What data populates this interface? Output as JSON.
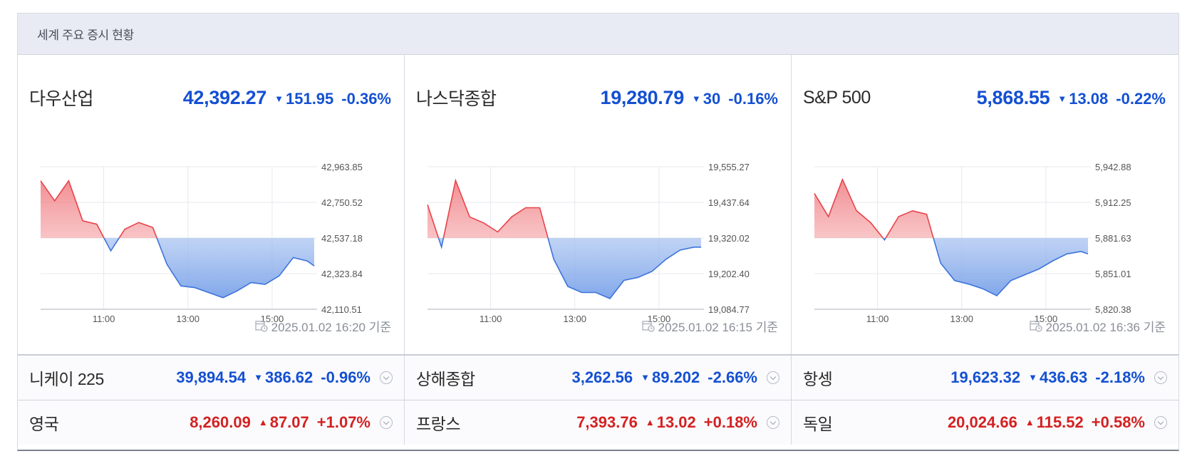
{
  "header": {
    "title": "세계 주요 증시 현황"
  },
  "panels": [
    {
      "name": "다우산업",
      "price": "42,392.27",
      "change": "151.95",
      "percent": "-0.36%",
      "direction": "down",
      "timestamp": "2025.01.02 16:20 기준"
    },
    {
      "name": "나스닥종합",
      "price": "19,280.79",
      "change": "30",
      "percent": "-0.16%",
      "direction": "down",
      "timestamp": "2025.01.02 16:15 기준"
    },
    {
      "name": "S&P 500",
      "price": "5,868.55",
      "change": "13.08",
      "percent": "-0.22%",
      "direction": "down",
      "timestamp": "2025.01.02 16:36 기준"
    }
  ],
  "rows": [
    [
      {
        "name": "니케이 225",
        "price": "39,894.54",
        "change": "386.62",
        "percent": "-0.96%",
        "direction": "down"
      },
      {
        "name": "상해종합",
        "price": "3,262.56",
        "change": "89.202",
        "percent": "-2.66%",
        "direction": "down"
      },
      {
        "name": "항셍",
        "price": "19,623.32",
        "change": "436.63",
        "percent": "-2.18%",
        "direction": "down"
      }
    ],
    [
      {
        "name": "영국",
        "price": "8,260.09",
        "change": "87.07",
        "percent": "+1.07%",
        "direction": "up"
      },
      {
        "name": "프랑스",
        "price": "7,393.76",
        "change": "13.02",
        "percent": "+0.18%",
        "direction": "up"
      },
      {
        "name": "독일",
        "price": "20,024.66",
        "change": "115.52",
        "percent": "+0.58%",
        "direction": "up"
      }
    ]
  ],
  "colors": {
    "up": "#d42121",
    "down": "#1450d2",
    "up_line": "#e8434a",
    "down_line": "#3c74dc"
  },
  "icons": {
    "down_arrow": "▼",
    "up_arrow": "▲",
    "timestamp_icon": "calendar-clock-icon",
    "expand_icon": "chevron-down-circle-icon"
  },
  "chart_data": [
    {
      "type": "line",
      "title": "다우산업",
      "x_ticks": [
        "11:00",
        "13:00",
        "15:00"
      ],
      "y_ticks": [
        "42,963.85",
        "42,750.52",
        "42,537.18",
        "42,323.84",
        "42,110.51"
      ],
      "ylim": [
        42110.51,
        42963.85
      ],
      "baseline": 42537.18,
      "x": [
        "09:30",
        "09:50",
        "10:10",
        "10:30",
        "10:50",
        "11:10",
        "11:30",
        "11:50",
        "12:10",
        "12:30",
        "12:50",
        "13:10",
        "13:30",
        "13:50",
        "14:10",
        "14:30",
        "14:50",
        "15:10",
        "15:30",
        "15:50",
        "16:00"
      ],
      "values": [
        42880,
        42760,
        42880,
        42640,
        42620,
        42460,
        42590,
        42630,
        42600,
        42380,
        42250,
        42240,
        42210,
        42180,
        42220,
        42270,
        42260,
        42310,
        42420,
        42400,
        42370
      ]
    },
    {
      "type": "line",
      "title": "나스닥종합",
      "x_ticks": [
        "11:00",
        "13:00",
        "15:00"
      ],
      "y_ticks": [
        "19,555.27",
        "19,437.64",
        "19,320.02",
        "19,202.40",
        "19,084.77"
      ],
      "ylim": [
        19084.77,
        19555.27
      ],
      "baseline": 19320.02,
      "x": [
        "09:30",
        "09:50",
        "10:10",
        "10:30",
        "10:50",
        "11:10",
        "11:30",
        "11:50",
        "12:10",
        "12:30",
        "12:50",
        "13:10",
        "13:30",
        "13:50",
        "14:10",
        "14:30",
        "14:50",
        "15:10",
        "15:30",
        "15:50",
        "16:00"
      ],
      "values": [
        19430,
        19290,
        19510,
        19390,
        19370,
        19340,
        19390,
        19420,
        19420,
        19250,
        19160,
        19140,
        19140,
        19120,
        19180,
        19190,
        19210,
        19250,
        19280,
        19290,
        19290
      ]
    },
    {
      "type": "line",
      "title": "S&P 500",
      "x_ticks": [
        "11:00",
        "13:00",
        "15:00"
      ],
      "y_ticks": [
        "5,942.88",
        "5,912.25",
        "5,881.63",
        "5,851.01",
        "5,820.38"
      ],
      "ylim": [
        5820.38,
        5942.88
      ],
      "baseline": 5881.63,
      "x": [
        "09:30",
        "09:50",
        "10:10",
        "10:30",
        "10:50",
        "11:10",
        "11:30",
        "11:50",
        "12:10",
        "12:30",
        "12:50",
        "13:10",
        "13:30",
        "13:50",
        "14:10",
        "14:30",
        "14:50",
        "15:10",
        "15:30",
        "15:50",
        "16:00"
      ],
      "values": [
        5920,
        5900,
        5932,
        5905,
        5895,
        5880,
        5900,
        5905,
        5902,
        5860,
        5845,
        5842,
        5838,
        5832,
        5845,
        5850,
        5855,
        5862,
        5868,
        5870,
        5868
      ]
    }
  ]
}
